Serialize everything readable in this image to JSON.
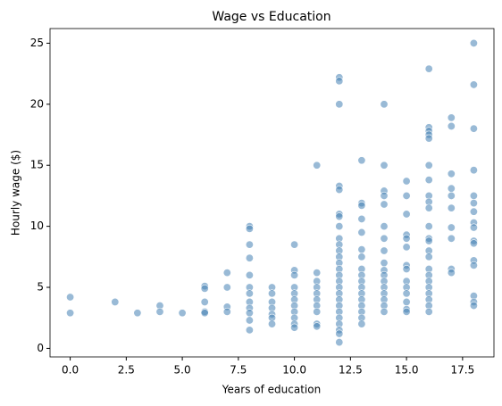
{
  "chart_data": {
    "type": "scatter",
    "title": "Wage vs Education",
    "x_label": "Years of education",
    "y_label": "Hourly wage ($)",
    "color": "#4682b4",
    "x": [
      0,
      0,
      2,
      3,
      4,
      4,
      5,
      6,
      6,
      6,
      6,
      6,
      7,
      7,
      7,
      7,
      8,
      8,
      8,
      8,
      8,
      8,
      8,
      8,
      8,
      8,
      8,
      8,
      9,
      9,
      9,
      9,
      9,
      9,
      9,
      10,
      10,
      10,
      10,
      10,
      10,
      10,
      10,
      10,
      10,
      10,
      11,
      11,
      11,
      11,
      11,
      11,
      11,
      11,
      11,
      11,
      12,
      12,
      12,
      12,
      12,
      12,
      12,
      12,
      12,
      12,
      12,
      12,
      12,
      12,
      12,
      12,
      12,
      12,
      12,
      12,
      12,
      12,
      12,
      12,
      12,
      12,
      13,
      13,
      13,
      13,
      13,
      13,
      13,
      13,
      13,
      13,
      13,
      13,
      13,
      13,
      13,
      13,
      13,
      14,
      14,
      14,
      14,
      14,
      14,
      14,
      14,
      14,
      14,
      14,
      14,
      14,
      14,
      14,
      14,
      14,
      15,
      15,
      15,
      15,
      15,
      15,
      15,
      15,
      15,
      15,
      15,
      15,
      15,
      15,
      16,
      16,
      16,
      16,
      16,
      16,
      16,
      16,
      16,
      16,
      16,
      16,
      16,
      16,
      16,
      16,
      16,
      16,
      16,
      16,
      16,
      16,
      16,
      17,
      17,
      17,
      17,
      17,
      17,
      17,
      17,
      17,
      17,
      18,
      18,
      18,
      18,
      18,
      18,
      18,
      18,
      18,
      18,
      18,
      18,
      18,
      18,
      18,
      18
    ],
    "values": [
      4.2,
      2.9,
      3.8,
      2.9,
      3.5,
      3.0,
      2.9,
      5.1,
      4.9,
      3.8,
      3.0,
      2.9,
      6.2,
      5.0,
      3.4,
      3.0,
      10.0,
      9.8,
      8.5,
      7.4,
      6.0,
      5.0,
      4.5,
      3.8,
      3.3,
      2.9,
      2.3,
      1.5,
      5.0,
      4.5,
      3.8,
      3.3,
      2.8,
      2.5,
      2.0,
      8.5,
      6.4,
      6.0,
      5.0,
      4.5,
      4.0,
      3.5,
      3.0,
      2.5,
      2.0,
      1.7,
      15.0,
      6.2,
      5.5,
      5.0,
      4.5,
      4.0,
      3.5,
      3.0,
      2.0,
      1.8,
      22.2,
      21.9,
      20.0,
      13.3,
      13.0,
      11.0,
      10.8,
      10.0,
      9.0,
      8.5,
      8.0,
      7.5,
      7.0,
      6.5,
      6.0,
      5.5,
      5.0,
      4.5,
      4.0,
      3.5,
      3.0,
      2.5,
      2.0,
      1.5,
      1.2,
      0.5,
      15.4,
      11.9,
      11.7,
      10.6,
      9.5,
      8.1,
      7.5,
      6.5,
      6.0,
      5.5,
      5.0,
      4.5,
      4.0,
      3.5,
      3.0,
      2.5,
      2.0,
      20.0,
      15.0,
      12.9,
      12.5,
      11.8,
      10.0,
      9.0,
      8.0,
      7.0,
      6.4,
      6.0,
      5.5,
      5.0,
      4.5,
      4.0,
      3.5,
      3.0,
      13.7,
      12.5,
      11.0,
      9.3,
      9.0,
      8.3,
      6.8,
      6.5,
      5.5,
      5.0,
      4.5,
      3.8,
      3.2,
      3.0,
      22.9,
      18.1,
      17.8,
      17.5,
      17.2,
      15.0,
      13.8,
      12.5,
      12.0,
      11.5,
      10.0,
      9.0,
      8.8,
      8.0,
      7.5,
      6.5,
      6.0,
      5.5,
      5.0,
      4.5,
      4.0,
      3.5,
      3.0,
      18.9,
      18.2,
      14.3,
      13.1,
      12.5,
      11.5,
      9.9,
      9.0,
      6.5,
      6.2,
      25.0,
      21.6,
      18.0,
      14.6,
      12.5,
      11.9,
      11.2,
      10.3,
      9.9,
      8.8,
      8.6,
      7.2,
      6.8,
      4.3,
      3.8,
      3.5
    ],
    "xlim": [
      -0.9,
      18.9
    ],
    "xticks": [
      {
        "value": 0,
        "label": "0.0"
      },
      2.5,
      {
        "value": 5,
        "label": "5.0"
      },
      7.5,
      {
        "value": 10,
        "label": "10.0"
      },
      12.5,
      {
        "value": 15,
        "label": "15.0"
      },
      17.5
    ],
    "ylim": [
      -0.7,
      26.2
    ],
    "yticks": [
      0,
      5,
      10,
      15,
      20,
      25
    ],
    "grid": false
  }
}
